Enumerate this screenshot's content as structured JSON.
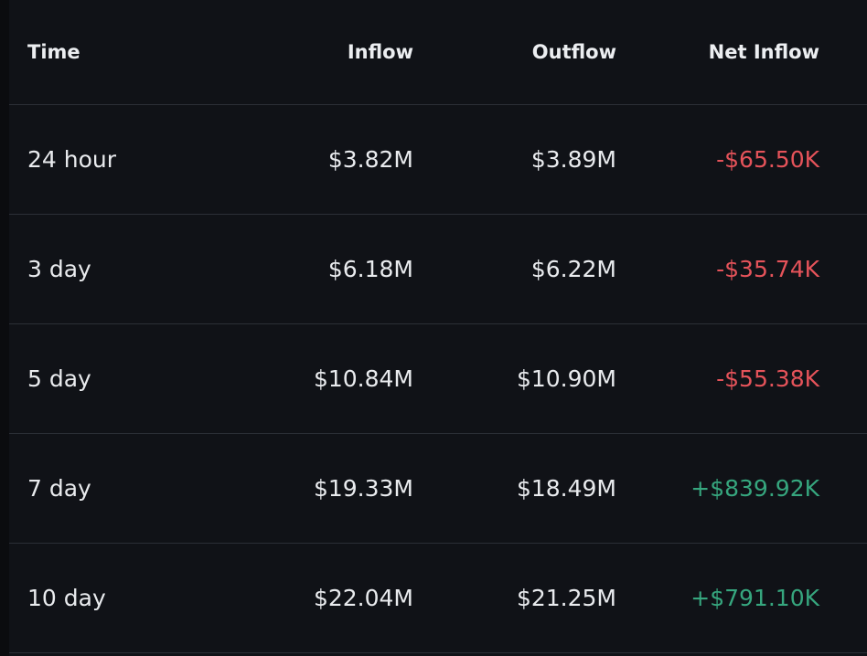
{
  "table": {
    "headers": {
      "time": "Time",
      "inflow": "Inflow",
      "outflow": "Outflow",
      "net_inflow": "Net Inflow"
    },
    "rows": [
      {
        "time": "24 hour",
        "inflow": "$3.82M",
        "outflow": "$3.89M",
        "net_inflow": "-$65.50K",
        "sign": "negative"
      },
      {
        "time": "3 day",
        "inflow": "$6.18M",
        "outflow": "$6.22M",
        "net_inflow": "-$35.74K",
        "sign": "negative"
      },
      {
        "time": "5 day",
        "inflow": "$10.84M",
        "outflow": "$10.90M",
        "net_inflow": "-$55.38K",
        "sign": "negative"
      },
      {
        "time": "7 day",
        "inflow": "$19.33M",
        "outflow": "$18.49M",
        "net_inflow": "+$839.92K",
        "sign": "positive"
      },
      {
        "time": "10 day",
        "inflow": "$22.04M",
        "outflow": "$21.25M",
        "net_inflow": "+$791.10K",
        "sign": "positive"
      }
    ]
  },
  "colors": {
    "background": "#101217",
    "negative": "#e5535a",
    "positive": "#36a67e",
    "divider": "#2b2f36"
  }
}
